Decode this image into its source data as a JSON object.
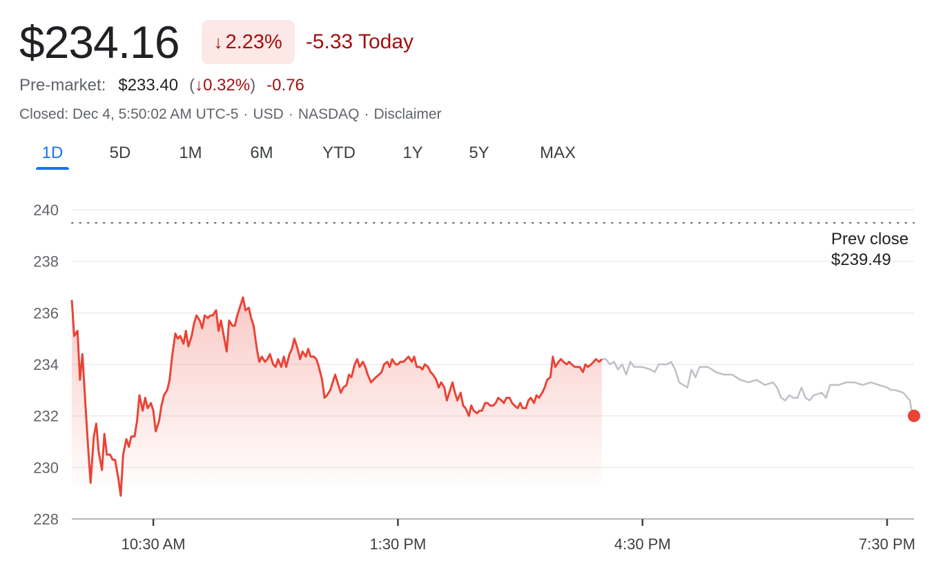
{
  "quote": {
    "price": "$234.16",
    "change_pct": "2.23%",
    "change_abs": "-5.33 Today",
    "direction_icon": "arrow-down-icon"
  },
  "premarket": {
    "label": "Pre-market:",
    "price": "$233.40",
    "change_pct": "0.32%",
    "change_abs": "-0.76"
  },
  "status": {
    "closed": "Closed: Dec 4, 5:50:02 AM UTC-5",
    "currency": "USD",
    "exchange": "NASDAQ",
    "disclaimer": "Disclaimer"
  },
  "tabs": [
    {
      "label": "1D",
      "active": true
    },
    {
      "label": "5D",
      "active": false
    },
    {
      "label": "1M",
      "active": false
    },
    {
      "label": "6M",
      "active": false
    },
    {
      "label": "YTD",
      "active": false
    },
    {
      "label": "1Y",
      "active": false
    },
    {
      "label": "5Y",
      "active": false
    },
    {
      "label": "MAX",
      "active": false
    }
  ],
  "colors": {
    "down": "#a50e0e",
    "line_regular": "#ea4335",
    "line_after_hours": "#bdc1c6",
    "accent": "#1a73e8"
  },
  "chart_data": {
    "type": "line",
    "x_unit": "hours (time of day, UTC-5)",
    "xlim": [
      9.5,
      19.83
    ],
    "ylim": [
      228,
      240
    ],
    "y_ticks": [
      228,
      230,
      232,
      234,
      236,
      238,
      240
    ],
    "y_tick_labels": [
      "228",
      "230",
      "232",
      "234",
      "236",
      "238",
      "240"
    ],
    "x_ticks": [
      10.5,
      13.5,
      16.5,
      19.5
    ],
    "x_tick_labels": [
      "10:30 AM",
      "1:30 PM",
      "4:30 PM",
      "7:30 PM"
    ],
    "grid": true,
    "prev_close": {
      "value": 239.49,
      "label": "Prev close",
      "value_label": "$239.49"
    },
    "series": [
      {
        "segment": "regular",
        "points": [
          [
            9.5,
            236.5
          ],
          [
            9.53,
            235.1
          ],
          [
            9.57,
            235.3
          ],
          [
            9.6,
            233.4
          ],
          [
            9.63,
            234.4
          ],
          [
            9.67,
            232.3
          ],
          [
            9.7,
            230.8
          ],
          [
            9.73,
            229.4
          ],
          [
            9.77,
            231.2
          ],
          [
            9.8,
            231.7
          ],
          [
            9.83,
            230.6
          ],
          [
            9.87,
            229.9
          ],
          [
            9.9,
            231.3
          ],
          [
            9.93,
            230.5
          ],
          [
            9.97,
            230.5
          ],
          [
            10.0,
            230.3
          ],
          [
            10.03,
            230.3
          ],
          [
            10.07,
            229.6
          ],
          [
            10.1,
            228.9
          ],
          [
            10.13,
            230.5
          ],
          [
            10.17,
            231.1
          ],
          [
            10.2,
            230.8
          ],
          [
            10.23,
            231.2
          ],
          [
            10.27,
            231.2
          ],
          [
            10.3,
            231.8
          ],
          [
            10.33,
            232.8
          ],
          [
            10.37,
            232.2
          ],
          [
            10.4,
            232.7
          ],
          [
            10.43,
            232.3
          ],
          [
            10.47,
            232.5
          ],
          [
            10.5,
            232.2
          ],
          [
            10.53,
            231.4
          ],
          [
            10.57,
            231.8
          ],
          [
            10.6,
            232.4
          ],
          [
            10.63,
            232.8
          ],
          [
            10.67,
            233.0
          ],
          [
            10.7,
            233.4
          ],
          [
            10.73,
            234.3
          ],
          [
            10.77,
            235.2
          ],
          [
            10.8,
            235.0
          ],
          [
            10.83,
            235.1
          ],
          [
            10.87,
            234.8
          ],
          [
            10.9,
            235.3
          ],
          [
            10.93,
            234.7
          ],
          [
            10.97,
            235.1
          ],
          [
            11.0,
            235.6
          ],
          [
            11.03,
            235.9
          ],
          [
            11.07,
            235.7
          ],
          [
            11.1,
            235.4
          ],
          [
            11.13,
            235.9
          ],
          [
            11.17,
            235.8
          ],
          [
            11.2,
            235.9
          ],
          [
            11.23,
            235.9
          ],
          [
            11.27,
            236.1
          ],
          [
            11.3,
            235.3
          ],
          [
            11.33,
            235.7
          ],
          [
            11.37,
            235.0
          ],
          [
            11.4,
            234.5
          ],
          [
            11.43,
            235.7
          ],
          [
            11.47,
            235.5
          ],
          [
            11.5,
            235.5
          ],
          [
            11.53,
            235.9
          ],
          [
            11.57,
            236.3
          ],
          [
            11.6,
            236.6
          ],
          [
            11.63,
            236.1
          ],
          [
            11.67,
            236.2
          ],
          [
            11.7,
            235.8
          ],
          [
            11.73,
            235.5
          ],
          [
            11.77,
            234.6
          ],
          [
            11.8,
            234.1
          ],
          [
            11.83,
            234.3
          ],
          [
            11.87,
            234.1
          ],
          [
            11.9,
            234.2
          ],
          [
            11.93,
            234.4
          ],
          [
            11.97,
            234.0
          ],
          [
            12.0,
            233.9
          ],
          [
            12.03,
            234.2
          ],
          [
            12.07,
            233.9
          ],
          [
            12.1,
            234.3
          ],
          [
            12.13,
            233.9
          ],
          [
            12.17,
            234.4
          ],
          [
            12.2,
            234.6
          ],
          [
            12.23,
            235.0
          ],
          [
            12.27,
            234.6
          ],
          [
            12.3,
            234.2
          ],
          [
            12.33,
            234.5
          ],
          [
            12.37,
            234.3
          ],
          [
            12.4,
            234.6
          ],
          [
            12.43,
            234.3
          ],
          [
            12.47,
            234.3
          ],
          [
            12.5,
            234.2
          ],
          [
            12.53,
            233.9
          ],
          [
            12.57,
            233.4
          ],
          [
            12.6,
            232.7
          ],
          [
            12.63,
            232.8
          ],
          [
            12.67,
            233.0
          ],
          [
            12.7,
            233.3
          ],
          [
            12.73,
            233.6
          ],
          [
            12.77,
            233.2
          ],
          [
            12.8,
            232.9
          ],
          [
            12.83,
            233.1
          ],
          [
            12.87,
            233.2
          ],
          [
            12.9,
            233.6
          ],
          [
            12.93,
            233.5
          ],
          [
            12.97,
            234.0
          ],
          [
            13.0,
            234.2
          ],
          [
            13.03,
            233.9
          ],
          [
            13.07,
            234.1
          ],
          [
            13.1,
            233.9
          ],
          [
            13.13,
            233.6
          ],
          [
            13.17,
            233.3
          ],
          [
            13.2,
            233.4
          ],
          [
            13.23,
            233.5
          ],
          [
            13.27,
            233.6
          ],
          [
            13.3,
            233.7
          ],
          [
            13.33,
            234.0
          ],
          [
            13.37,
            234.1
          ],
          [
            13.4,
            233.9
          ],
          [
            13.43,
            234.2
          ],
          [
            13.47,
            234.0
          ],
          [
            13.5,
            234.0
          ],
          [
            13.53,
            234.1
          ],
          [
            13.57,
            234.1
          ],
          [
            13.6,
            234.2
          ],
          [
            13.63,
            234.3
          ],
          [
            13.67,
            234.1
          ],
          [
            13.7,
            234.3
          ],
          [
            13.73,
            233.9
          ],
          [
            13.77,
            233.9
          ],
          [
            13.8,
            233.8
          ],
          [
            13.83,
            234.0
          ],
          [
            13.87,
            233.9
          ],
          [
            13.9,
            233.7
          ],
          [
            13.93,
            233.6
          ],
          [
            13.97,
            233.4
          ],
          [
            14.0,
            233.1
          ],
          [
            14.03,
            233.3
          ],
          [
            14.07,
            233.1
          ],
          [
            14.1,
            232.6
          ],
          [
            14.13,
            232.9
          ],
          [
            14.17,
            233.3
          ],
          [
            14.2,
            232.9
          ],
          [
            14.23,
            232.6
          ],
          [
            14.27,
            232.9
          ],
          [
            14.3,
            232.4
          ],
          [
            14.33,
            232.3
          ],
          [
            14.37,
            232.0
          ],
          [
            14.4,
            232.4
          ],
          [
            14.43,
            232.2
          ],
          [
            14.47,
            232.1
          ],
          [
            14.5,
            232.2
          ],
          [
            14.53,
            232.2
          ],
          [
            14.57,
            232.5
          ],
          [
            14.6,
            232.5
          ],
          [
            14.63,
            232.4
          ],
          [
            14.67,
            232.4
          ],
          [
            14.7,
            232.5
          ],
          [
            14.73,
            232.7
          ],
          [
            14.77,
            232.6
          ],
          [
            14.8,
            232.5
          ],
          [
            14.83,
            232.7
          ],
          [
            14.87,
            232.7
          ],
          [
            14.9,
            232.5
          ],
          [
            14.93,
            232.4
          ],
          [
            14.97,
            232.3
          ],
          [
            15.0,
            232.5
          ],
          [
            15.03,
            232.3
          ],
          [
            15.07,
            232.3
          ],
          [
            15.1,
            232.6
          ],
          [
            15.13,
            232.7
          ],
          [
            15.17,
            232.5
          ],
          [
            15.2,
            232.8
          ],
          [
            15.23,
            232.7
          ],
          [
            15.27,
            232.9
          ],
          [
            15.3,
            233.1
          ],
          [
            15.33,
            233.4
          ],
          [
            15.37,
            233.5
          ],
          [
            15.4,
            234.3
          ],
          [
            15.43,
            233.9
          ],
          [
            15.47,
            234.1
          ],
          [
            15.5,
            234.2
          ],
          [
            15.53,
            234.1
          ],
          [
            15.57,
            234.0
          ],
          [
            15.6,
            234.1
          ],
          [
            15.63,
            234.0
          ],
          [
            15.67,
            233.9
          ],
          [
            15.7,
            233.9
          ],
          [
            15.73,
            233.9
          ],
          [
            15.77,
            233.7
          ],
          [
            15.8,
            234.0
          ],
          [
            15.83,
            233.9
          ],
          [
            15.87,
            234.0
          ],
          [
            15.9,
            234.1
          ],
          [
            15.93,
            234.2
          ],
          [
            15.97,
            234.1
          ],
          [
            16.0,
            234.2
          ]
        ]
      },
      {
        "segment": "after-hours",
        "points": [
          [
            16.0,
            234.2
          ],
          [
            16.05,
            234.2
          ],
          [
            16.1,
            234.0
          ],
          [
            16.15,
            234.1
          ],
          [
            16.2,
            233.8
          ],
          [
            16.25,
            234.0
          ],
          [
            16.3,
            233.6
          ],
          [
            16.35,
            234.1
          ],
          [
            16.4,
            233.9
          ],
          [
            16.5,
            233.9
          ],
          [
            16.6,
            233.8
          ],
          [
            16.65,
            233.7
          ],
          [
            16.7,
            234.0
          ],
          [
            16.8,
            234.0
          ],
          [
            16.85,
            234.1
          ],
          [
            16.9,
            233.8
          ],
          [
            16.95,
            233.3
          ],
          [
            17.0,
            233.2
          ],
          [
            17.05,
            233.1
          ],
          [
            17.1,
            233.8
          ],
          [
            17.15,
            233.5
          ],
          [
            17.2,
            233.9
          ],
          [
            17.3,
            233.9
          ],
          [
            17.4,
            233.7
          ],
          [
            17.5,
            233.6
          ],
          [
            17.6,
            233.6
          ],
          [
            17.7,
            233.4
          ],
          [
            17.8,
            233.3
          ],
          [
            17.9,
            233.4
          ],
          [
            18.0,
            233.2
          ],
          [
            18.1,
            233.3
          ],
          [
            18.15,
            233.1
          ],
          [
            18.2,
            232.7
          ],
          [
            18.25,
            232.6
          ],
          [
            18.3,
            232.8
          ],
          [
            18.35,
            232.7
          ],
          [
            18.4,
            232.7
          ],
          [
            18.45,
            233.1
          ],
          [
            18.5,
            232.7
          ],
          [
            18.55,
            232.6
          ],
          [
            18.6,
            232.8
          ],
          [
            18.7,
            232.9
          ],
          [
            18.75,
            232.7
          ],
          [
            18.8,
            233.2
          ],
          [
            18.9,
            233.2
          ],
          [
            19.0,
            233.3
          ],
          [
            19.1,
            233.3
          ],
          [
            19.2,
            233.2
          ],
          [
            19.3,
            233.3
          ],
          [
            19.4,
            233.2
          ],
          [
            19.5,
            233.1
          ],
          [
            19.55,
            233.0
          ],
          [
            19.6,
            233.0
          ],
          [
            19.7,
            232.9
          ],
          [
            19.75,
            232.7
          ],
          [
            19.78,
            232.6
          ],
          [
            19.8,
            232.2
          ],
          [
            19.83,
            232.0
          ]
        ]
      }
    ],
    "last_point": {
      "x": 19.83,
      "y": 232.0
    }
  }
}
